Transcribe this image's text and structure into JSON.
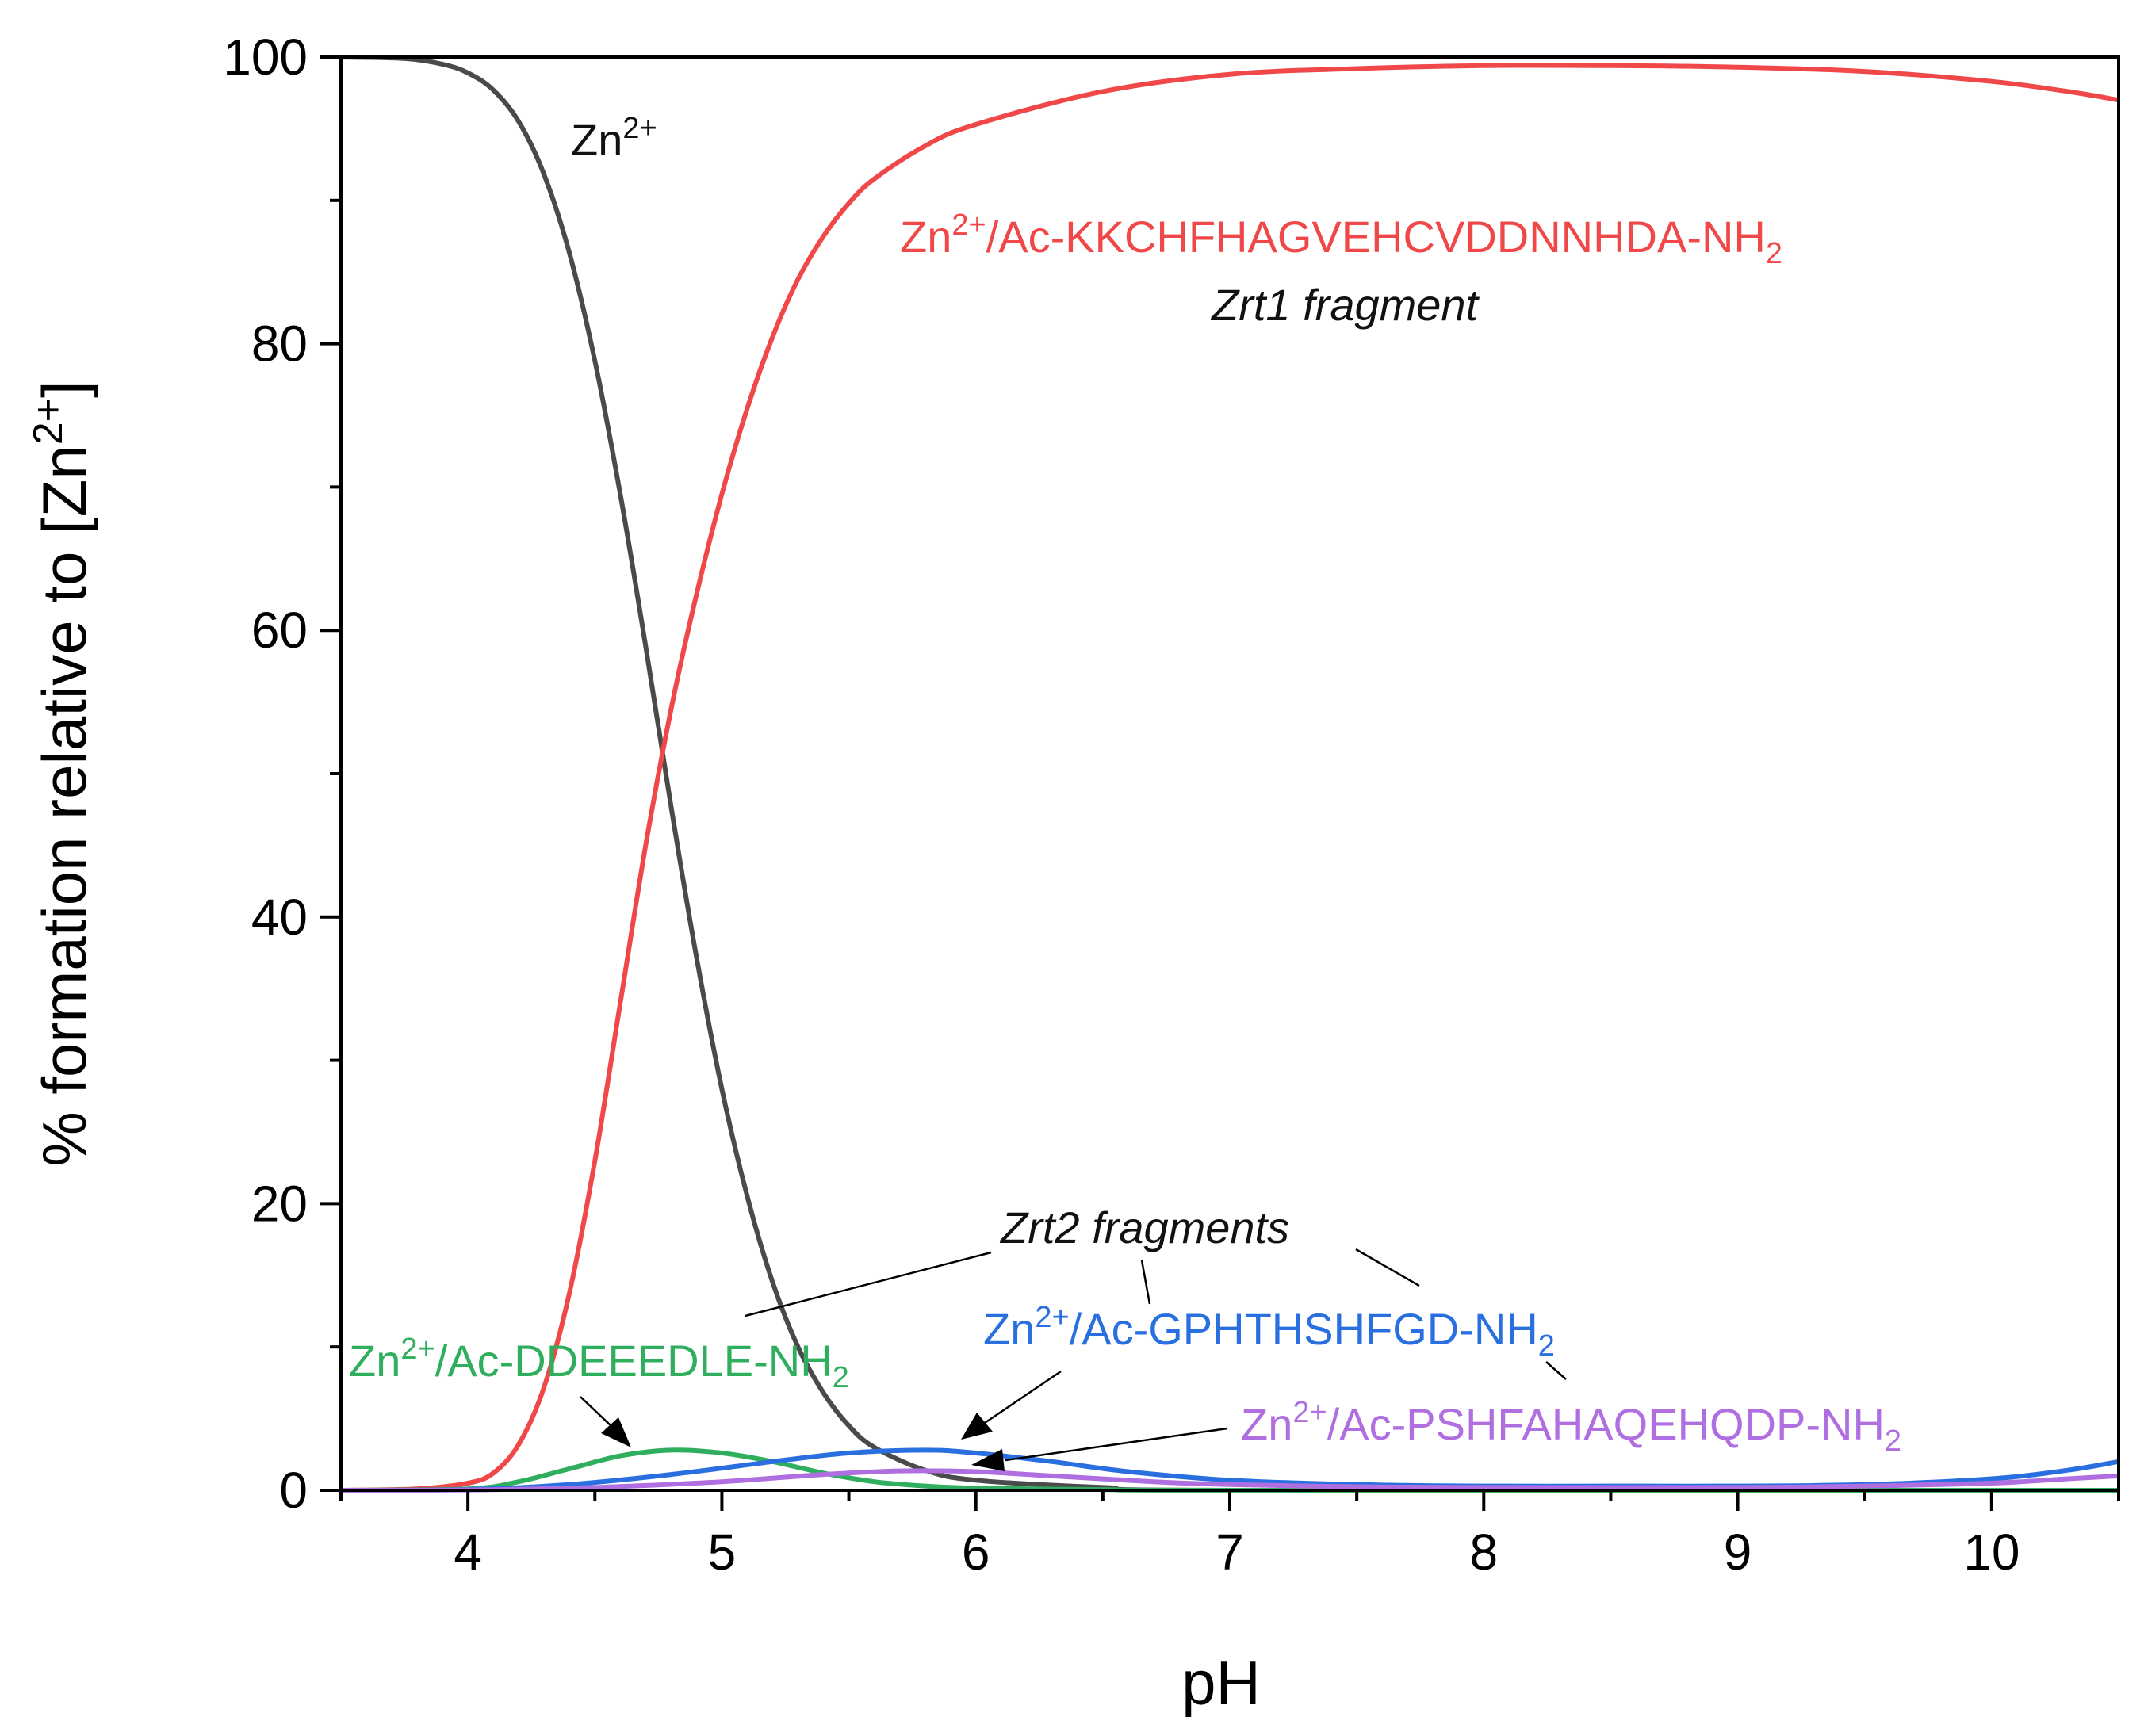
{
  "chart_data": {
    "type": "line",
    "title": "",
    "xlabel": "pH",
    "ylabel": "% formation relative to [Zn2+]",
    "ylabel_parts": {
      "base": "% formation relative to [Zn",
      "sup": "2+",
      "close": "]"
    },
    "xlim": [
      3.5,
      10.5
    ],
    "ylim": [
      0,
      100
    ],
    "grid": false,
    "x_ticks": [
      4,
      5,
      6,
      7,
      8,
      9,
      10
    ],
    "y_ticks": [
      0,
      20,
      40,
      60,
      80,
      100
    ],
    "series": [
      {
        "name": "Zn2+",
        "color": "#4a4a4a",
        "points": [
          [
            3.5,
            100
          ],
          [
            3.75,
            99.9
          ],
          [
            3.9,
            99.5
          ],
          [
            4.0,
            98.9
          ],
          [
            4.1,
            97.7
          ],
          [
            4.2,
            95.5
          ],
          [
            4.3,
            91.8
          ],
          [
            4.4,
            86.3
          ],
          [
            4.5,
            78.8
          ],
          [
            4.6,
            69.5
          ],
          [
            4.7,
            58.9
          ],
          [
            4.8,
            47.7
          ],
          [
            4.9,
            37.2
          ],
          [
            5.0,
            28.0
          ],
          [
            5.1,
            20.5
          ],
          [
            5.2,
            14.5
          ],
          [
            5.3,
            10.0
          ],
          [
            5.4,
            6.8
          ],
          [
            5.5,
            4.5
          ],
          [
            5.6,
            3.0
          ],
          [
            5.8,
            1.4
          ],
          [
            6.0,
            0.7
          ],
          [
            6.5,
            0.2
          ],
          [
            7.0,
            0.0
          ],
          [
            10.5,
            0.0
          ]
        ]
      },
      {
        "name": "Zn2+/Ac-KKCHFHAGVEHCVDDNNHDA-NH2",
        "color": "#f04848",
        "points": [
          [
            3.5,
            0.0
          ],
          [
            3.8,
            0.1
          ],
          [
            4.0,
            0.5
          ],
          [
            4.1,
            1.2
          ],
          [
            4.2,
            3.2
          ],
          [
            4.3,
            7.2
          ],
          [
            4.4,
            13.8
          ],
          [
            4.5,
            23.0
          ],
          [
            4.6,
            34.0
          ],
          [
            4.7,
            45.0
          ],
          [
            4.8,
            54.5
          ],
          [
            4.9,
            62.5
          ],
          [
            5.0,
            69.5
          ],
          [
            5.1,
            75.5
          ],
          [
            5.2,
            80.5
          ],
          [
            5.3,
            84.5
          ],
          [
            5.4,
            87.5
          ],
          [
            5.5,
            89.8
          ],
          [
            5.6,
            91.5
          ],
          [
            5.8,
            93.8
          ],
          [
            6.0,
            95.3
          ],
          [
            6.5,
            97.6
          ],
          [
            7.0,
            98.8
          ],
          [
            7.5,
            99.2
          ],
          [
            8.0,
            99.4
          ],
          [
            8.5,
            99.4
          ],
          [
            9.0,
            99.3
          ],
          [
            9.5,
            99.0
          ],
          [
            10.0,
            98.3
          ],
          [
            10.3,
            97.6
          ],
          [
            10.5,
            97.0
          ]
        ]
      },
      {
        "name": "Zn2+/Ac-DDEEEDLE-NH2",
        "color": "#2fae5e",
        "points": [
          [
            3.5,
            0.0
          ],
          [
            4.0,
            0.1
          ],
          [
            4.2,
            0.6
          ],
          [
            4.4,
            1.5
          ],
          [
            4.6,
            2.4
          ],
          [
            4.8,
            2.8
          ],
          [
            5.0,
            2.6
          ],
          [
            5.2,
            2.0
          ],
          [
            5.4,
            1.2
          ],
          [
            5.6,
            0.6
          ],
          [
            5.8,
            0.3
          ],
          [
            6.0,
            0.15
          ],
          [
            6.5,
            0.05
          ],
          [
            7.0,
            0.0
          ],
          [
            10.5,
            0.0
          ]
        ]
      },
      {
        "name": "Zn2+/Ac-GPHTHSHFGD-NH2",
        "color": "#2a6fe0",
        "points": [
          [
            3.5,
            0.0
          ],
          [
            4.0,
            0.05
          ],
          [
            4.4,
            0.4
          ],
          [
            4.8,
            1.1
          ],
          [
            5.2,
            2.0
          ],
          [
            5.5,
            2.6
          ],
          [
            5.8,
            2.8
          ],
          [
            6.0,
            2.6
          ],
          [
            6.3,
            2.0
          ],
          [
            6.6,
            1.3
          ],
          [
            7.0,
            0.7
          ],
          [
            7.5,
            0.4
          ],
          [
            8.0,
            0.3
          ],
          [
            8.5,
            0.3
          ],
          [
            9.0,
            0.3
          ],
          [
            9.5,
            0.4
          ],
          [
            10.0,
            0.8
          ],
          [
            10.3,
            1.4
          ],
          [
            10.5,
            2.0
          ]
        ]
      },
      {
        "name": "Zn2+/Ac-PSHFAHAQEHQDP-NH2",
        "color": "#b06fe0",
        "points": [
          [
            3.5,
            0.0
          ],
          [
            4.0,
            0.02
          ],
          [
            4.5,
            0.2
          ],
          [
            5.0,
            0.6
          ],
          [
            5.4,
            1.1
          ],
          [
            5.7,
            1.35
          ],
          [
            6.0,
            1.3
          ],
          [
            6.3,
            1.0
          ],
          [
            6.7,
            0.6
          ],
          [
            7.0,
            0.4
          ],
          [
            7.5,
            0.25
          ],
          [
            8.0,
            0.2
          ],
          [
            9.0,
            0.2
          ],
          [
            9.5,
            0.3
          ],
          [
            10.0,
            0.5
          ],
          [
            10.3,
            0.8
          ],
          [
            10.5,
            1.0
          ]
        ]
      }
    ],
    "annotations": {
      "zn_free": {
        "base": "Zn",
        "sup": "2+"
      },
      "kkc": {
        "base": "Zn",
        "sup": "2+",
        "mid": "/Ac-KKCHFHAGVEHCVDDNNHDA-NH",
        "sub": "2"
      },
      "zrt1": "Zrt1 fragment",
      "zrt2": "Zrt2 fragments",
      "dde": {
        "base": "Zn",
        "sup": "2+",
        "mid": "/Ac-DDEEEDLE-NH",
        "sub": "2"
      },
      "gph": {
        "base": "Zn",
        "sup": "2+",
        "mid": "/Ac-GPHTHSHFGD-NH",
        "sub": "2"
      },
      "psh": {
        "base": "Zn",
        "sup": "2+",
        "mid": "/Ac-PSHFAHAQEHQDP-NH",
        "sub": "2"
      }
    }
  }
}
